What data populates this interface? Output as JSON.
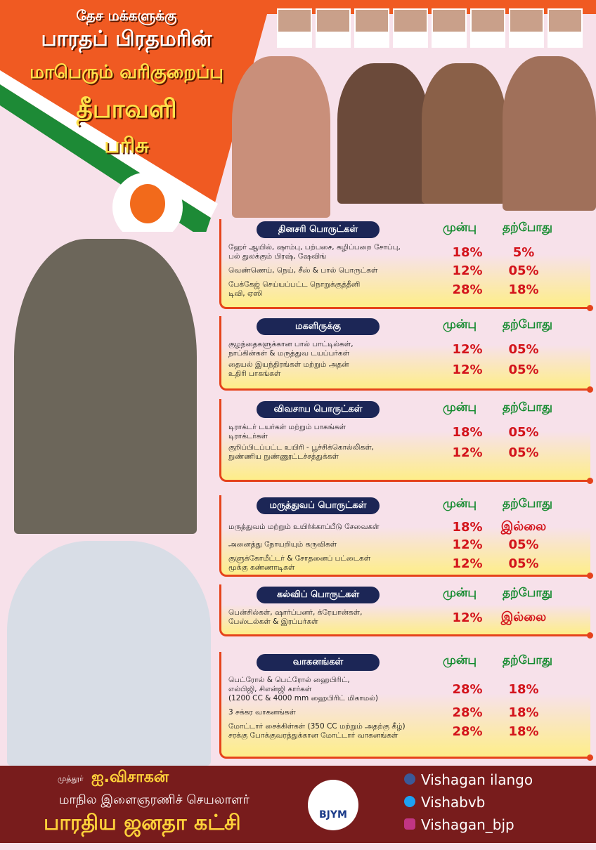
{
  "header": {
    "line1": "தேச மக்களுக்கு",
    "line2": "பாரதப் பிரதமரின்",
    "line3": "மாபெரும் வரிகுறைப்பு",
    "line4": "தீபாவளி",
    "line5": "பரிசு"
  },
  "sections": [
    {
      "title": "தினசரி பொருட்கள்",
      "before_label": "முன்பு",
      "after_label": "தற்போது",
      "rows": [
        {
          "lines": [
            "ஹேர் ஆயில், ஷாம்பு, பற்பசை, கழிப்பறை சோப்பு,",
            "பல் துலக்கும் பிரஷ், ஷேவிங்"
          ],
          "before": "18%",
          "after": "5%"
        },
        {
          "lines": [
            "வெண்ணெய், நெய், சீஸ் & பால் பொருட்கள்"
          ],
          "before": "12%",
          "after": "05%"
        },
        {
          "lines": [
            "பேக்கேஜ் செய்யப்பட்ட நொறுக்குத்தீனி",
            "டிவி, ஏஸி"
          ],
          "before": "28%",
          "after": "18%"
        }
      ]
    },
    {
      "title": "மகளிருக்கு",
      "before_label": "முன்பு",
      "after_label": "தற்போது",
      "rows": [
        {
          "lines": [
            "குழந்தைகளுக்கான பால் பாட்டில்கள்,",
            "நாப்கின்கள் & மருத்துவ டயப்பர்கள்"
          ],
          "before": "12%",
          "after": "05%"
        },
        {
          "lines": [
            "தையல் இயந்திரங்கள் மற்றும் அதன்",
            "உதிரி பாகங்கள்"
          ],
          "before": "12%",
          "after": "05%"
        }
      ]
    },
    {
      "title": "விவசாய பொருட்கள்",
      "before_label": "முன்பு",
      "after_label": "தற்போது",
      "rows": [
        {
          "lines": [
            "டிராக்டர் டயர்கள் மற்றும் பாகங்கள்",
            "டிராக்டர்கள்"
          ],
          "before": "18%",
          "after": "05%"
        },
        {
          "lines": [
            "குறிப்பிடப்பட்ட உயிரி - பூச்சிக்கொல்லிகள்,",
            "நுண்ணிய நுண்ணூட்டச்சத்துக்கள்"
          ],
          "before": "12%",
          "after": "05%"
        }
      ]
    },
    {
      "title": "மருத்துவப் பொருட்கள்",
      "before_label": "முன்பு",
      "after_label": "தற்போது",
      "rows": [
        {
          "lines": [
            "மருத்துவம் மற்றும் உயிர்க்காப்பீடு சேவைகள்"
          ],
          "before": "18%",
          "after": "இல்லை"
        },
        {
          "lines": [
            "அனைத்து நோயறியும் கருவிகள்"
          ],
          "before": "12%",
          "after": "05%"
        },
        {
          "lines": [
            "குளுக்கோமீட்டர் & சோதனைப் பட்டைகள்",
            "மூக்கு கண்ணாடிகள்"
          ],
          "before": "12%",
          "after": "05%"
        }
      ]
    },
    {
      "title": "கல்விப் பொருட்கள்",
      "before_label": "முன்பு",
      "after_label": "தற்போது",
      "rows": [
        {
          "lines": [
            "பென்சில்கள், ஷார்ப்பனர், க்ரேயான்கள்,",
            "பேஸ்டல்கள் & இரப்பர்கள்"
          ],
          "before": "12%",
          "after": "இல்லை"
        }
      ]
    },
    {
      "title": "வாகனங்கள்",
      "before_label": "முன்பு",
      "after_label": "தற்போது",
      "rows": [
        {
          "lines": [
            "பெட்ரோல் & பெட்ரோல் ஹைபிரிட்,",
            "எல்பிஜி, சிஎன்ஜி கார்கள்",
            "(1200 CC & 4000 mm ஹைபிரிட் மிகாமல்)"
          ],
          "before": "28%",
          "after": "18%"
        },
        {
          "lines": [
            "3 சக்கர வாகனங்கள்"
          ],
          "before": "28%",
          "after": "18%"
        },
        {
          "lines": [
            "மோட்டார் சைக்கிள்கள் (350 CC மற்றும் அதற்கு கீழ்)",
            "சரக்கு போக்குவரத்துக்கான மோட்டார் வாகனங்கள்"
          ],
          "before": "28%",
          "after": "18%"
        }
      ]
    }
  ],
  "footer": {
    "prefix": "முத்தூர்",
    "name": "ஐ.விசாகன்",
    "role": "மாநில இளைஞரணிச் செயலாளர்",
    "party": "பாரதிய ஜனதா கட்சி",
    "logo": "BJYM",
    "facebook": "Vishagan ilango",
    "twitter": "Vishabvb",
    "instagram": "Vishagan_bjp"
  }
}
